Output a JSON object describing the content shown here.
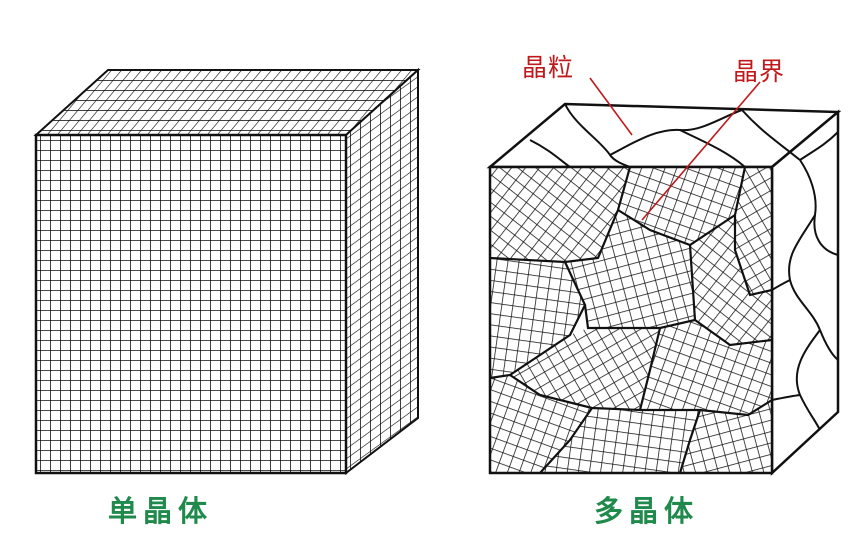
{
  "labels": {
    "single_crystal": "单晶体",
    "polycrystal": "多晶体",
    "grain": "晶粒",
    "grain_boundary": "晶界"
  },
  "colors": {
    "caption": "#1f8a4c",
    "annotation": "#c0181b",
    "line": "#111111"
  }
}
